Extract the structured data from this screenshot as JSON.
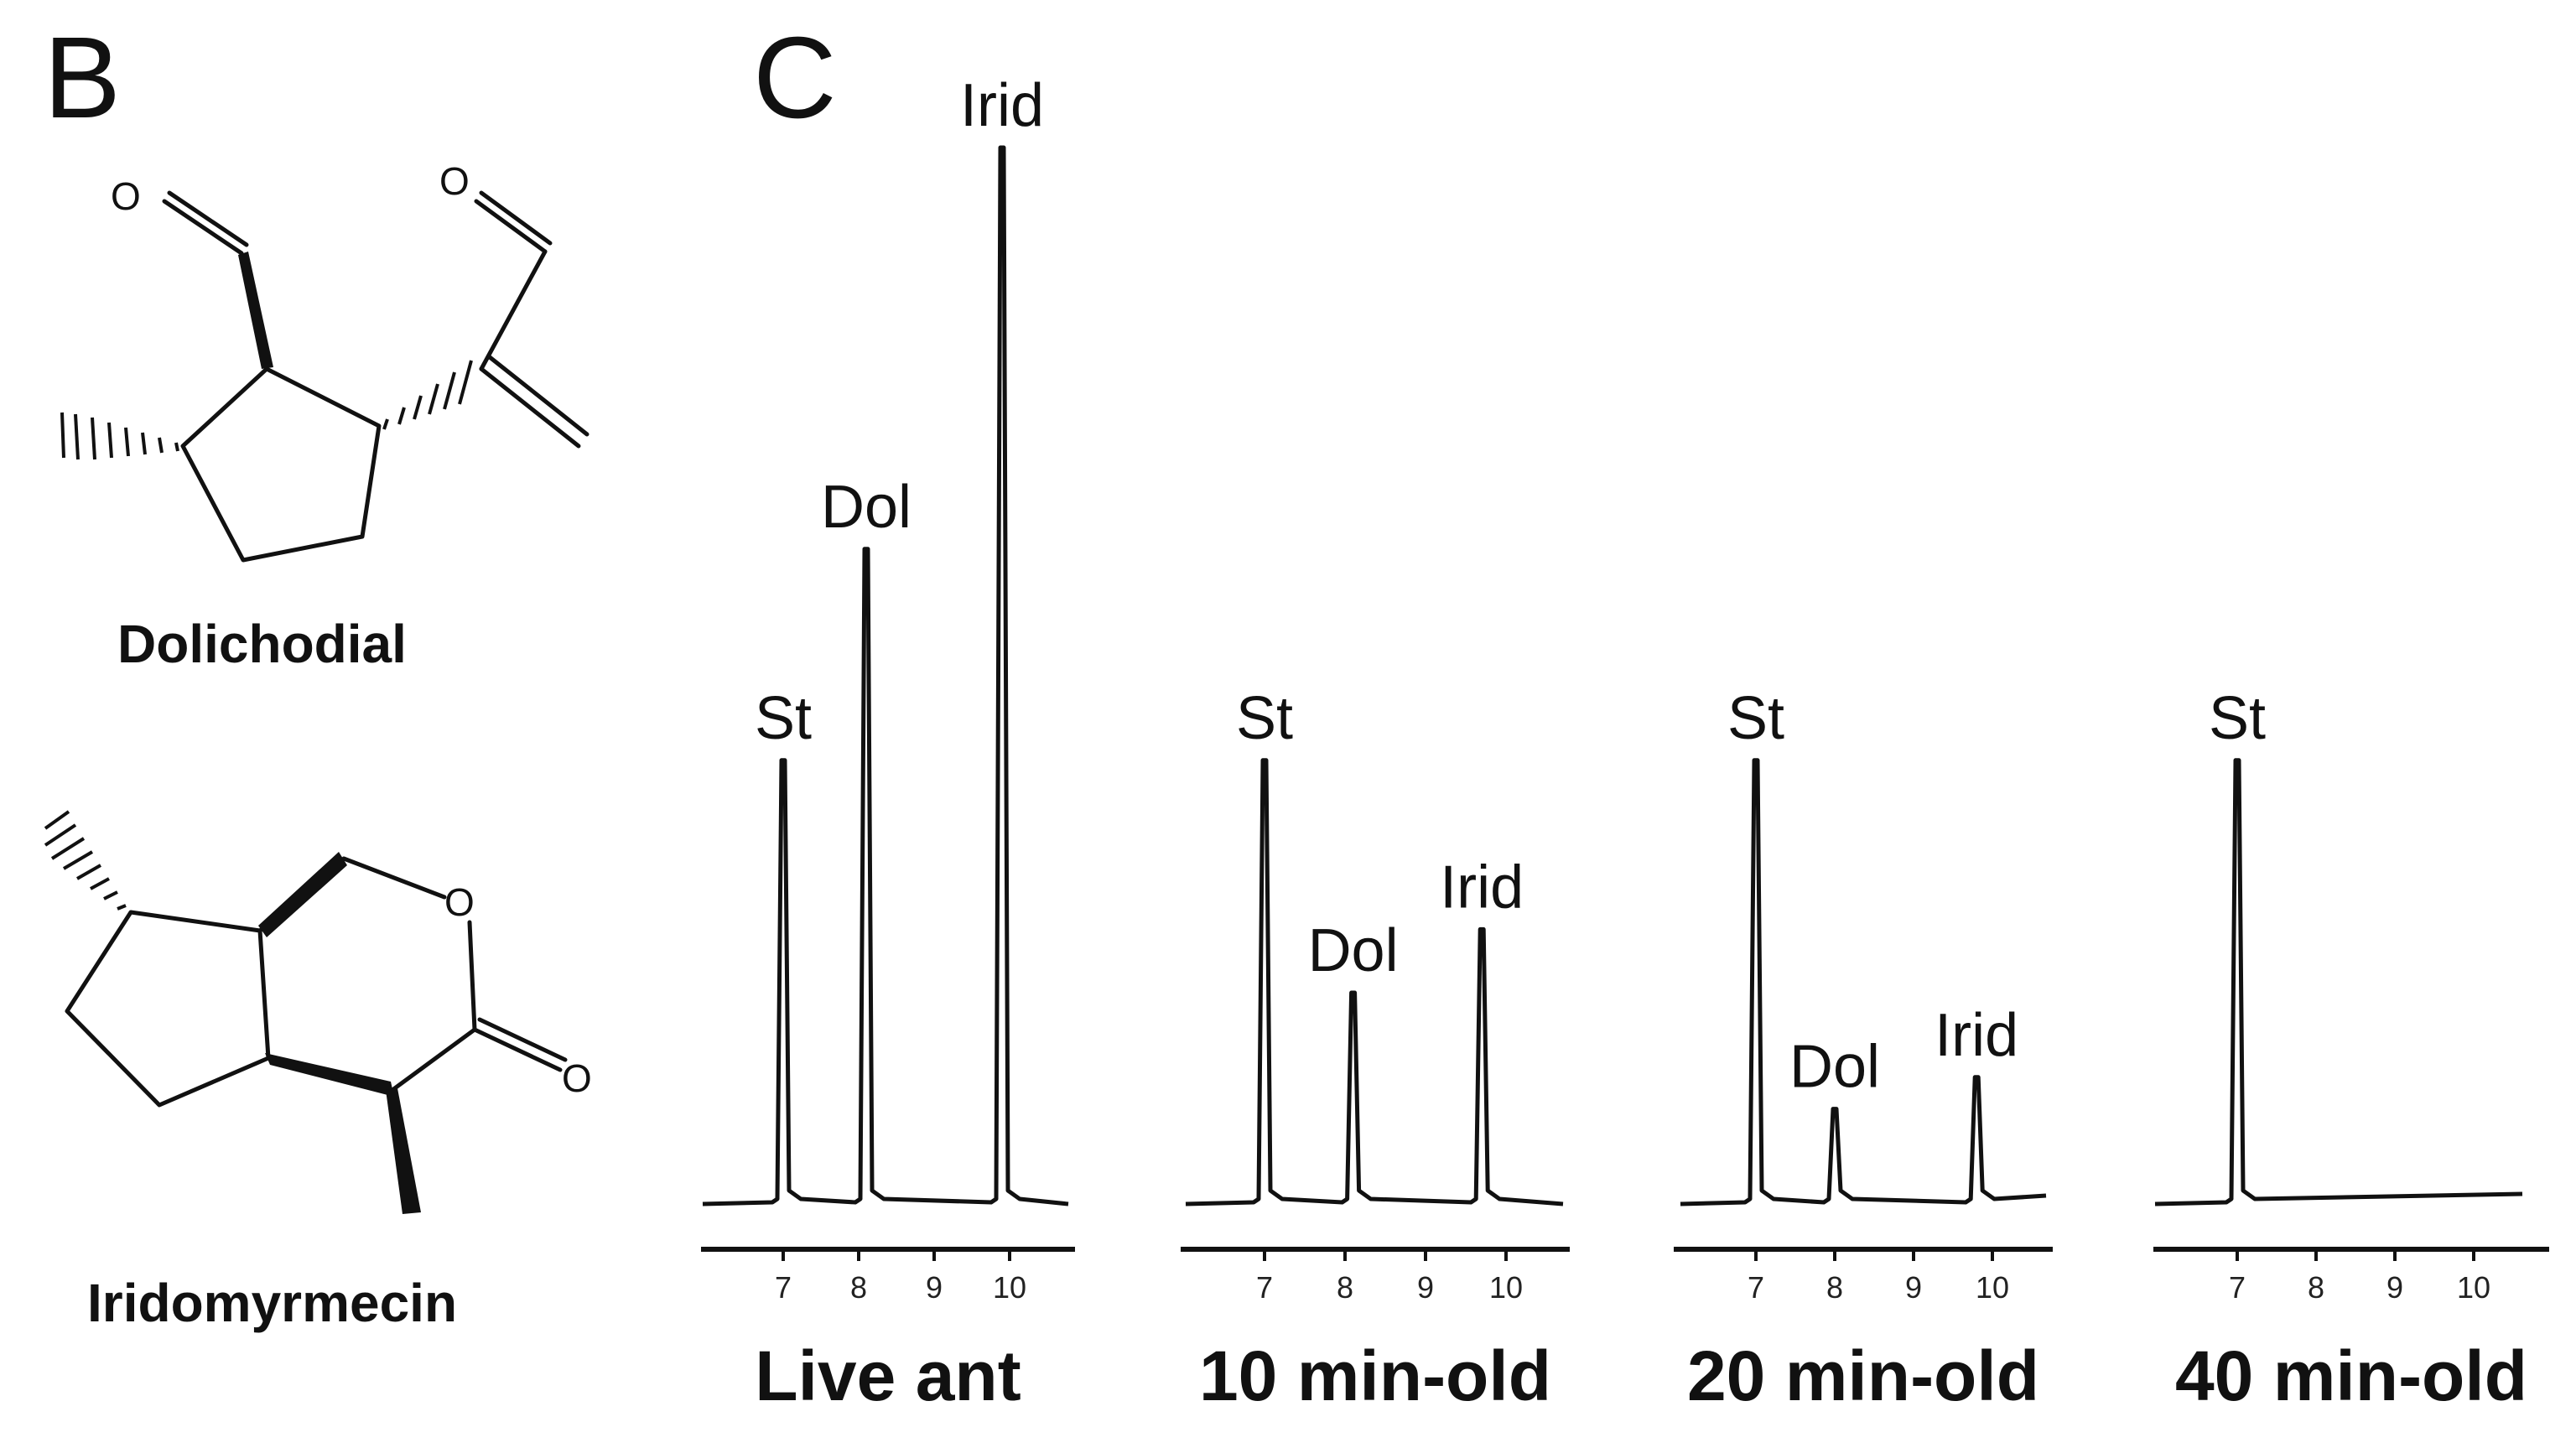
{
  "panels": {
    "b_letter": "B",
    "c_letter": "C"
  },
  "structures": [
    {
      "name": "Dolichodial",
      "atoms": [
        "O",
        "O"
      ]
    },
    {
      "name": "Iridomyrmecin",
      "atoms": [
        "O",
        "O"
      ]
    }
  ],
  "chart_data": {
    "type": "line",
    "description_x_ticks": [
      7,
      8,
      9,
      10
    ],
    "x_range": [
      6.2,
      10.8
    ],
    "y_range": [
      0,
      1
    ],
    "panels": [
      {
        "label": "Live ant",
        "peaks": [
          {
            "name": "St",
            "x": 7.0,
            "height": 0.42
          },
          {
            "name": "Dol",
            "x": 8.1,
            "height": 0.62
          },
          {
            "name": "Irid",
            "x": 9.9,
            "height": 1.0
          }
        ],
        "baseline": 0.0
      },
      {
        "label": "10 min-old",
        "peaks": [
          {
            "name": "St",
            "x": 7.0,
            "height": 0.42
          },
          {
            "name": "Dol",
            "x": 8.1,
            "height": 0.2
          },
          {
            "name": "Irid",
            "x": 9.7,
            "height": 0.26
          }
        ],
        "baseline": 0.0
      },
      {
        "label": "20 min-old",
        "peaks": [
          {
            "name": "St",
            "x": 7.0,
            "height": 0.42
          },
          {
            "name": "Dol",
            "x": 8.0,
            "height": 0.09
          },
          {
            "name": "Irid",
            "x": 9.8,
            "height": 0.12
          }
        ],
        "baseline": 0.0
      },
      {
        "label": "40 min-old",
        "peaks": [
          {
            "name": "St",
            "x": 7.0,
            "height": 0.42
          }
        ],
        "baseline": 0.0
      }
    ]
  }
}
